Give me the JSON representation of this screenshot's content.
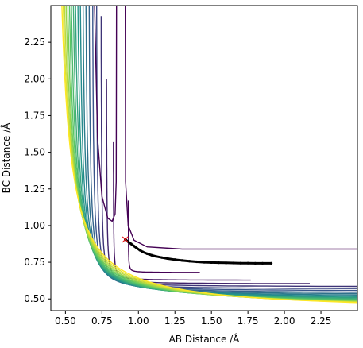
{
  "chart_data": {
    "type": "contour",
    "xlabel": "AB Distance /Å",
    "ylabel": "BC Distance /Å",
    "xlim": [
      0.4,
      2.5
    ],
    "ylim": [
      0.42,
      2.5
    ],
    "x_ticks": [
      "0.50",
      "0.75",
      "1.00",
      "1.25",
      "1.50",
      "1.75",
      "2.00",
      "2.25"
    ],
    "y_ticks": [
      "0.50",
      "0.75",
      "1.00",
      "1.25",
      "1.50",
      "1.75",
      "2.00",
      "2.25"
    ],
    "colormap": "viridis",
    "contour_levels": 20,
    "trajectory_color": "#000000",
    "start_marker": {
      "symbol": "x",
      "color": "#e41a1c",
      "x": 0.91,
      "y": 0.905
    },
    "trajectory": [
      [
        0.91,
        0.905
      ],
      [
        0.93,
        0.89
      ],
      [
        0.95,
        0.875
      ],
      [
        0.97,
        0.86
      ],
      [
        0.99,
        0.845
      ],
      [
        1.01,
        0.832
      ],
      [
        1.03,
        0.82
      ],
      [
        1.06,
        0.808
      ],
      [
        1.09,
        0.798
      ],
      [
        1.12,
        0.79
      ],
      [
        1.16,
        0.782
      ],
      [
        1.2,
        0.775
      ],
      [
        1.25,
        0.768
      ],
      [
        1.3,
        0.762
      ],
      [
        1.35,
        0.757
      ],
      [
        1.4,
        0.753
      ],
      [
        1.45,
        0.75
      ],
      [
        1.5,
        0.748
      ],
      [
        1.55,
        0.747
      ],
      [
        1.6,
        0.746
      ],
      [
        1.65,
        0.745
      ],
      [
        1.7,
        0.744
      ],
      [
        1.75,
        0.744
      ],
      [
        1.8,
        0.743
      ],
      [
        1.85,
        0.743
      ],
      [
        1.91,
        0.743
      ]
    ]
  }
}
